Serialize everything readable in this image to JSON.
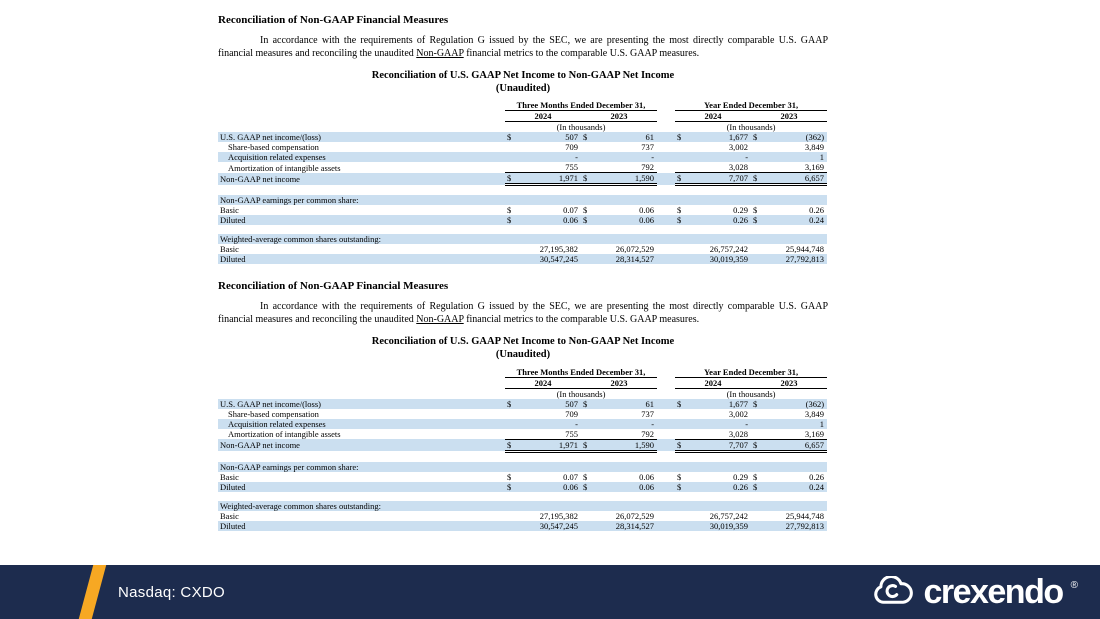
{
  "colors": {
    "row_shade": "#cbdff0",
    "footer_bar": "#1d2c4e",
    "accent": "#f7a823"
  },
  "section_count": 2,
  "section": {
    "heading": "Reconciliation of Non-GAAP Financial Measures",
    "para_before": "In accordance with the requirements of Regulation G issued by the SEC, we are presenting the most directly comparable U.S. GAAP financial measures and reconciling the unaudited ",
    "para_underlined": "Non-GAAP",
    "para_after": " financial metrics to the comparable U.S. GAAP measures.",
    "table_title": "Reconciliation of U.S. GAAP Net Income to Non-GAAP Net Income",
    "table_subtitle": "(Unaudited)",
    "table": {
      "currency": "$",
      "group1": "Three Months Ended December 31,",
      "group2": "Year Ended December 31,",
      "years": [
        "2024",
        "2023",
        "2024",
        "2023"
      ],
      "units": "(In thousands)",
      "rows": [
        {
          "type": "data",
          "shade": true,
          "dollar": true,
          "label": "U.S. GAAP net income/(loss)",
          "values": [
            "507",
            "61",
            "1,677",
            "(362)"
          ]
        },
        {
          "type": "data",
          "shade": false,
          "indent": true,
          "label": "Share-based compensation",
          "values": [
            "709",
            "737",
            "3,002",
            "3,849"
          ]
        },
        {
          "type": "data",
          "shade": true,
          "indent": true,
          "label": "Acquisition related expenses",
          "values": [
            "-",
            "-",
            "-",
            "1"
          ]
        },
        {
          "type": "data",
          "shade": false,
          "indent": true,
          "label": "Amortization of intangible assets",
          "values": [
            "755",
            "792",
            "3,028",
            "3,169"
          ]
        },
        {
          "type": "total",
          "shade": true,
          "dollar": true,
          "label": "Non-GAAP net income",
          "values": [
            "1,971",
            "1,590",
            "7,707",
            "6,657"
          ]
        },
        {
          "type": "spacer"
        },
        {
          "type": "section",
          "shade": true,
          "label": "Non-GAAP earnings per common share:"
        },
        {
          "type": "data",
          "shade": false,
          "dollar": true,
          "label": "Basic",
          "values": [
            "0.07",
            "0.06",
            "0.29",
            "0.26"
          ]
        },
        {
          "type": "data",
          "shade": true,
          "dollar": true,
          "label": "Diluted",
          "values": [
            "0.06",
            "0.06",
            "0.26",
            "0.24"
          ]
        },
        {
          "type": "spacer"
        },
        {
          "type": "section",
          "shade": true,
          "label": "Weighted-average common shares outstanding:"
        },
        {
          "type": "data",
          "shade": false,
          "label": "Basic",
          "values": [
            "27,195,382",
            "26,072,529",
            "26,757,242",
            "25,944,748"
          ]
        },
        {
          "type": "data",
          "shade": true,
          "label": "Diluted",
          "values": [
            "30,547,245",
            "28,314,527",
            "30,019,359",
            "27,792,813"
          ]
        }
      ]
    }
  },
  "footer": {
    "ticker": "Nasdaq: CXDO",
    "logo_text": "crexendo",
    "registered": "®"
  }
}
